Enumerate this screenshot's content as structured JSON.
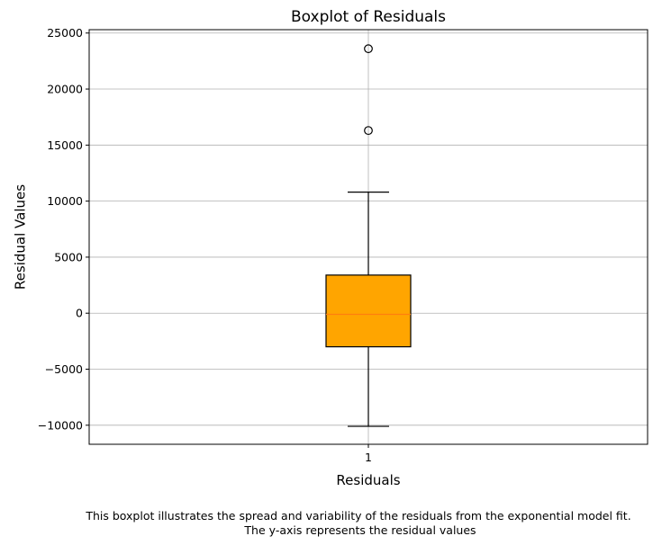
{
  "chart_data": {
    "type": "boxplot",
    "title": "Boxplot of Residuals",
    "xlabel": "Residuals",
    "ylabel": "Residual Values",
    "categories": [
      "1"
    ],
    "ylim": [
      -11700,
      25300
    ],
    "yticks": [
      -10000,
      -5000,
      0,
      5000,
      10000,
      15000,
      20000,
      25000
    ],
    "ytick_labels": [
      "−10000",
      "−5000",
      "0",
      "5000",
      "10000",
      "15000",
      "20000",
      "25000"
    ],
    "grid": true,
    "boxes": [
      {
        "category": "1",
        "whisker_low": -10100,
        "q1": -3000,
        "median": -100,
        "q3": 3400,
        "whisker_high": 10800,
        "outliers": [
          16300,
          23600
        ]
      }
    ],
    "colors": {
      "box_fill": "#FFA500",
      "median_line": "#FF7F0E",
      "grid": "#b0b0b0",
      "axes": "#000000"
    }
  },
  "caption": {
    "line1": "This boxplot illustrates the spread and variability of the residuals from the exponential model fit.",
    "line2": "The y-axis represents the residual values"
  }
}
